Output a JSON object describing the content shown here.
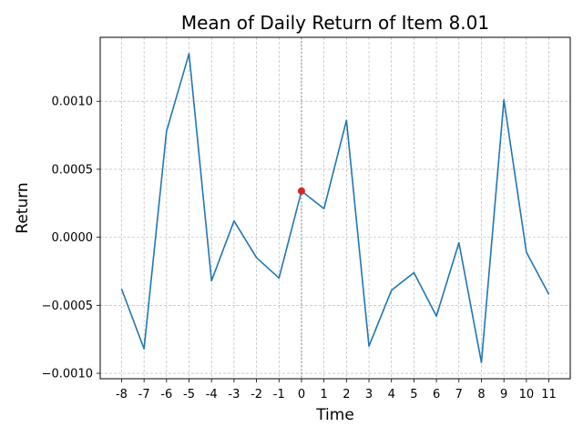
{
  "chart_data": {
    "type": "line",
    "title": "Mean of Daily Return of Item 8.01",
    "xlabel": "Time",
    "ylabel": "Return",
    "x": [
      -8,
      -7,
      -6,
      -5,
      -4,
      -3,
      -2,
      -1,
      0,
      1,
      2,
      3,
      4,
      5,
      6,
      7,
      8,
      9,
      10,
      11
    ],
    "x_tick_labels": [
      "-8",
      "-7",
      "-6",
      "-5",
      "-4",
      "-3",
      "-2",
      "-1",
      "0",
      "1",
      "2",
      "3",
      "4",
      "5",
      "6",
      "7",
      "8",
      "9",
      "10",
      "11"
    ],
    "y_tick_values": [
      -0.001,
      -0.0005,
      0.0,
      0.0005,
      0.001
    ],
    "y_tick_labels": [
      "−0.0010",
      "−0.0005",
      "0.0000",
      "0.0005",
      "0.0010"
    ],
    "series": [
      {
        "values": [
          -0.00038,
          -0.00082,
          0.00078,
          0.00135,
          -0.00032,
          0.00012,
          -0.00015,
          -0.0003,
          0.00034,
          0.00021,
          0.00086,
          -0.0008,
          -0.00039,
          -0.00026,
          -0.00058,
          -4e-05,
          -0.00092,
          0.00101,
          -0.00011,
          -0.00042
        ],
        "color": "#1f77b4"
      }
    ],
    "highlight": {
      "x": 0,
      "y": 0.00034,
      "color": "#d62728"
    },
    "xlim": [
      -8.95,
      11.95
    ],
    "ylim": [
      -0.00104,
      0.00147
    ],
    "grid": true,
    "vertical_reference_x": 0
  }
}
